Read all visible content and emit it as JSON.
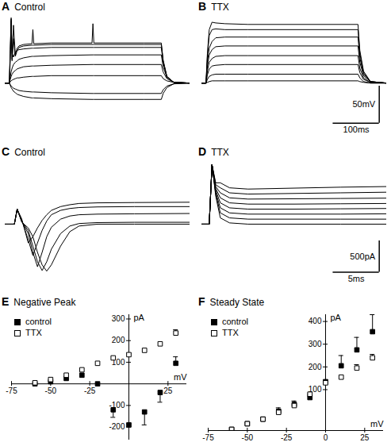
{
  "chart_data": [
    {
      "panel": "A",
      "title": "Control",
      "type": "line",
      "color": "#000000",
      "tick_labels": false,
      "xlim": [
        0,
        400
      ],
      "ylim": [
        -65,
        90
      ],
      "x": [
        0,
        9,
        11,
        13,
        15,
        18,
        22,
        26,
        30,
        40,
        58,
        60,
        62,
        100,
        188,
        190,
        192,
        300,
        338,
        342,
        350,
        365,
        400
      ],
      "series": [
        {
          "values": [
            0,
            0,
            -3,
            -6,
            -8,
            -11,
            -13,
            -15,
            -16,
            -18,
            -20,
            -20,
            -20,
            -21,
            -22,
            -22,
            -22,
            -22,
            -22,
            -14,
            -6,
            -1,
            0
          ]
        },
        {
          "values": [
            0,
            0,
            -2,
            -4,
            -5,
            -7,
            -8,
            -9,
            -10,
            -11,
            -12,
            -12,
            -12,
            -13,
            -14,
            -14,
            -14,
            -14,
            -14,
            -9,
            -4,
            -1,
            0
          ]
        },
        {
          "values": [
            0,
            0,
            2,
            3,
            4,
            5,
            6,
            7,
            7,
            8,
            9,
            9,
            9,
            10,
            10,
            10,
            10,
            10,
            10,
            6,
            3,
            1,
            0
          ]
        },
        {
          "values": [
            0,
            0,
            5,
            9,
            12,
            15,
            17,
            19,
            20,
            22,
            23,
            23,
            23,
            24,
            25,
            25,
            25,
            25,
            25,
            15,
            6,
            1,
            0
          ]
        },
        {
          "values": [
            0,
            0,
            8,
            15,
            20,
            25,
            28,
            30,
            32,
            34,
            36,
            36,
            36,
            37,
            38,
            38,
            38,
            38,
            38,
            22,
            8,
            1,
            0
          ]
        },
        {
          "values": [
            0,
            0,
            30,
            84,
            40,
            35,
            42,
            44,
            45,
            46,
            47,
            47,
            47,
            48,
            48,
            48,
            48,
            48,
            48,
            28,
            8,
            1,
            0
          ]
        },
        {
          "values": [
            0,
            0,
            40,
            86,
            30,
            60,
            36,
            44,
            48,
            50,
            51,
            51,
            51,
            52,
            52,
            52,
            52,
            52,
            52,
            30,
            9,
            1,
            0
          ]
        },
        {
          "values": [
            0,
            0,
            45,
            88,
            32,
            78,
            38,
            47,
            50,
            52,
            53,
            72,
            53,
            54,
            54,
            80,
            54,
            54,
            54,
            31,
            9,
            1,
            0
          ]
        }
      ]
    },
    {
      "panel": "B",
      "title": "TTX",
      "type": "line",
      "color": "#000000",
      "tick_labels": false,
      "xlim": [
        0,
        400
      ],
      "ylim": [
        -65,
        90
      ],
      "scale_bar": {
        "x": 100,
        "y": 50,
        "x_label": "100ms",
        "y_label": "50mV"
      },
      "x": [
        0,
        9,
        12,
        16,
        22,
        30,
        50,
        100,
        200,
        338,
        342,
        350,
        365,
        400
      ],
      "series": [
        {
          "values": [
            0,
            0,
            1,
            2,
            3,
            3,
            3,
            3,
            3,
            3,
            2,
            1,
            0,
            0
          ]
        },
        {
          "values": [
            0,
            0,
            5,
            9,
            11,
            12,
            12,
            12,
            12,
            12,
            7,
            2,
            0,
            0
          ]
        },
        {
          "values": [
            0,
            0,
            11,
            19,
            23,
            24,
            25,
            25,
            25,
            25,
            14,
            5,
            1,
            0
          ]
        },
        {
          "values": [
            0,
            0,
            17,
            28,
            33,
            36,
            37,
            37,
            37,
            37,
            20,
            7,
            1,
            0
          ]
        },
        {
          "values": [
            0,
            0,
            23,
            38,
            45,
            49,
            50,
            50,
            50,
            50,
            28,
            10,
            2,
            0
          ]
        },
        {
          "values": [
            0,
            0,
            28,
            47,
            56,
            61,
            62,
            62,
            62,
            62,
            34,
            12,
            2,
            0
          ]
        },
        {
          "values": [
            0,
            0,
            36,
            64,
            72,
            73,
            72,
            72,
            72,
            72,
            40,
            14,
            2,
            0
          ]
        },
        {
          "values": [
            0,
            0,
            40,
            72,
            82,
            81,
            80,
            79,
            79,
            79,
            44,
            16,
            2,
            0
          ]
        }
      ]
    },
    {
      "panel": "C",
      "title": "Control",
      "type": "line",
      "color": "#000000",
      "tick_labels": false,
      "xlim": [
        0,
        20
      ],
      "ylim": [
        -900,
        1000
      ],
      "x": [
        0,
        1,
        1.3,
        1.8,
        2.5,
        3,
        3.5,
        4,
        4.5,
        5,
        6,
        7,
        8,
        10,
        14,
        20
      ],
      "series": [
        {
          "values": [
            0,
            0,
            240,
            80,
            -300,
            -200,
            -60,
            60,
            150,
            220,
            280,
            310,
            330,
            340,
            345,
            350
          ]
        },
        {
          "values": [
            0,
            0,
            240,
            60,
            -250,
            -500,
            -300,
            -100,
            50,
            150,
            220,
            250,
            265,
            275,
            280,
            280
          ]
        },
        {
          "values": [
            0,
            0,
            240,
            50,
            -150,
            -450,
            -680,
            -450,
            -200,
            -50,
            80,
            130,
            150,
            160,
            165,
            170
          ]
        },
        {
          "values": [
            0,
            0,
            240,
            40,
            -100,
            -350,
            -600,
            -740,
            -600,
            -400,
            -150,
            -30,
            10,
            25,
            30,
            30
          ]
        },
        {
          "values": [
            0,
            0,
            240,
            30,
            -60,
            -200,
            -450,
            -650,
            -750,
            -650,
            -350,
            -120,
            -30,
            0,
            0,
            0
          ]
        }
      ]
    },
    {
      "panel": "D",
      "title": "TTX",
      "type": "line",
      "color": "#000000",
      "tick_labels": false,
      "xlim": [
        0,
        20
      ],
      "ylim": [
        -900,
        1000
      ],
      "scale_bar": {
        "x": 5,
        "y": 500,
        "x_label": "5ms",
        "y_label": "500pA"
      },
      "x": [
        0,
        0.8,
        1.1,
        1.5,
        2,
        3,
        5,
        10,
        15,
        20
      ],
      "series": [
        {
          "values": [
            0,
            0,
            950,
            450,
            100,
            20,
            0,
            0,
            0,
            0
          ]
        },
        {
          "values": [
            0,
            0,
            950,
            480,
            180,
            100,
            80,
            80,
            80,
            80
          ]
        },
        {
          "values": [
            0,
            0,
            950,
            510,
            260,
            180,
            160,
            160,
            160,
            165
          ]
        },
        {
          "values": [
            0,
            0,
            950,
            540,
            340,
            260,
            240,
            240,
            245,
            250
          ]
        },
        {
          "values": [
            0,
            0,
            950,
            570,
            420,
            340,
            320,
            320,
            325,
            330
          ]
        },
        {
          "values": [
            0,
            0,
            950,
            600,
            500,
            420,
            400,
            405,
            410,
            415
          ]
        },
        {
          "values": [
            0,
            0,
            950,
            630,
            580,
            500,
            480,
            490,
            500,
            510
          ]
        },
        {
          "values": [
            0,
            0,
            950,
            660,
            660,
            580,
            560,
            575,
            590,
            600
          ]
        }
      ]
    },
    {
      "panel": "E",
      "title": "Negative Peak",
      "type": "scatter",
      "legend": "top-left",
      "x_label": "mV",
      "y_label": "pA",
      "xlim": [
        -75,
        37
      ],
      "ylim": [
        -260,
        320
      ],
      "xticks": [
        -75,
        -50,
        -25,
        25
      ],
      "yticks": [
        -200,
        -100,
        100,
        200,
        300
      ],
      "x": [
        -60,
        -50,
        -40,
        -30,
        -20,
        -10,
        0,
        10,
        20,
        30
      ],
      "series": [
        {
          "name": "control",
          "color": "#000000",
          "marker": "square",
          "values": [
            0,
            10,
            25,
            40,
            0,
            -120,
            -190,
            -130,
            -40,
            95
          ],
          "errors": [
            null,
            null,
            null,
            null,
            null,
            35,
            null,
            60,
            45,
            30
          ]
        },
        {
          "name": "TTX",
          "color": "#000000",
          "marker": "open_square",
          "values": [
            5,
            20,
            40,
            65,
            95,
            120,
            135,
            155,
            185,
            235
          ],
          "errors": [
            null,
            null,
            null,
            null,
            null,
            null,
            null,
            null,
            null,
            15
          ]
        }
      ]
    },
    {
      "panel": "F",
      "title": "Steady State",
      "type": "scatter",
      "legend": "top-left",
      "x_label": "mV",
      "y_label": "pA",
      "xlim": [
        -75,
        37
      ],
      "ylim": [
        -80,
        430
      ],
      "xticks": [
        -75,
        -50,
        -25,
        0,
        25
      ],
      "yticks": [
        100,
        200,
        300,
        400
      ],
      "x": [
        -60,
        -50,
        -40,
        -30,
        -20,
        -10,
        0,
        10,
        20,
        30
      ],
      "series": [
        {
          "name": "control",
          "color": "#000000",
          "marker": "square",
          "values": [
            -75,
            -50,
            -30,
            5,
            35,
            65,
            135,
            205,
            275,
            355
          ],
          "errors": [
            null,
            null,
            null,
            15,
            15,
            15,
            null,
            45,
            55,
            75
          ]
        },
        {
          "name": "TTX",
          "color": "#000000",
          "marker": "open_square",
          "values": [
            -75,
            -50,
            -30,
            0,
            30,
            80,
            130,
            155,
            195,
            240
          ],
          "errors": [
            null,
            null,
            null,
            null,
            null,
            null,
            null,
            null,
            15,
            15
          ]
        }
      ]
    }
  ]
}
